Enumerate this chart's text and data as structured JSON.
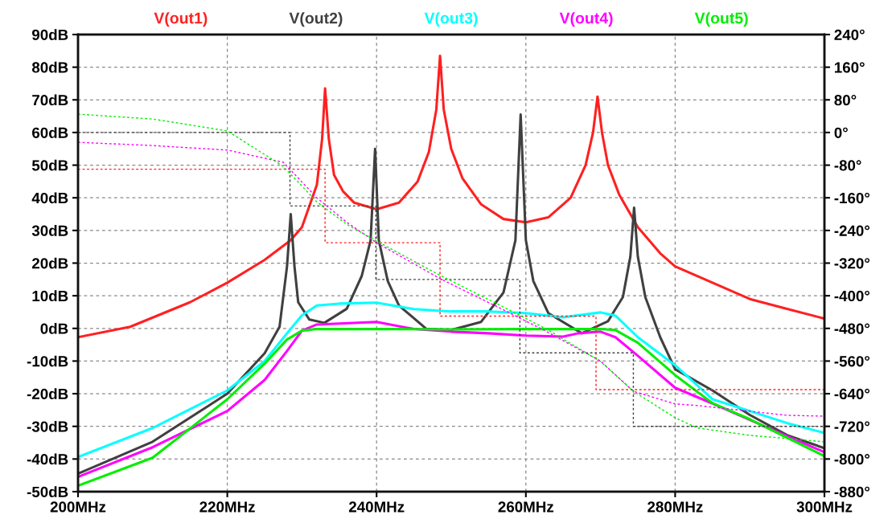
{
  "chart_data": {
    "type": "line",
    "xlim": [
      200,
      300
    ],
    "xticks": [
      {
        "value": 200,
        "label": "200MHz"
      },
      {
        "value": 220,
        "label": "220MHz"
      },
      {
        "value": 240,
        "label": "240MHz"
      },
      {
        "value": 260,
        "label": "260MHz"
      },
      {
        "value": 280,
        "label": "280MHz"
      },
      {
        "value": 300,
        "label": "300MHz"
      }
    ],
    "ylim": [
      -50,
      90
    ],
    "yticks": [
      {
        "value": 90,
        "label": "90dB"
      },
      {
        "value": 80,
        "label": "80dB"
      },
      {
        "value": 70,
        "label": "70dB"
      },
      {
        "value": 60,
        "label": "60dB"
      },
      {
        "value": 50,
        "label": "50dB"
      },
      {
        "value": 40,
        "label": "40dB"
      },
      {
        "value": 30,
        "label": "30dB"
      },
      {
        "value": 20,
        "label": "20dB"
      },
      {
        "value": 10,
        "label": "10dB"
      },
      {
        "value": 0,
        "label": "0dB"
      },
      {
        "value": -10,
        "label": "-10dB"
      },
      {
        "value": -20,
        "label": "-20dB"
      },
      {
        "value": -30,
        "label": "-30dB"
      },
      {
        "value": -40,
        "label": "-40dB"
      },
      {
        "value": -50,
        "label": "-50dB"
      }
    ],
    "y2lim": [
      -880,
      240
    ],
    "y2ticks": [
      {
        "value": 240,
        "label": "240°"
      },
      {
        "value": 160,
        "label": "160°"
      },
      {
        "value": 80,
        "label": "80°"
      },
      {
        "value": 0,
        "label": "0°"
      },
      {
        "value": -80,
        "label": "-80°"
      },
      {
        "value": -160,
        "label": "-160°"
      },
      {
        "value": -240,
        "label": "-240°"
      },
      {
        "value": -320,
        "label": "-320°"
      },
      {
        "value": -400,
        "label": "-400°"
      },
      {
        "value": -480,
        "label": "-480°"
      },
      {
        "value": -560,
        "label": "-560°"
      },
      {
        "value": -640,
        "label": "-640°"
      },
      {
        "value": -720,
        "label": "-720°"
      },
      {
        "value": -800,
        "label": "-800°"
      },
      {
        "value": -880,
        "label": "-880°"
      }
    ],
    "grid": true,
    "legend": "top",
    "series": [
      {
        "name": "V(out1)",
        "color": "#ff2020",
        "line_style": "solid",
        "x": [
          200,
          207,
          215,
          220,
          225,
          228.5,
          230,
          232,
          232.7,
          233.1,
          233.6,
          234.3,
          235.5,
          237,
          240,
          243,
          245.5,
          247,
          248,
          248.5,
          249,
          250,
          251.5,
          254,
          257,
          260,
          263,
          266,
          268,
          269,
          269.6,
          270.2,
          271,
          272.5,
          275,
          278,
          280,
          285,
          290,
          295,
          300
        ],
        "values": [
          -2.7,
          0.5,
          8,
          14,
          21,
          27,
          31,
          44,
          58,
          73.5,
          58,
          47,
          42,
          38.5,
          36.5,
          38.5,
          45,
          54,
          67,
          83.5,
          67,
          55,
          46,
          38,
          33.5,
          32.5,
          34,
          40,
          50,
          60,
          71,
          60,
          50,
          41,
          31,
          23,
          19,
          14,
          9,
          6,
          3
        ]
      },
      {
        "name": "V(out2)",
        "color": "#404040",
        "line_style": "solid",
        "x": [
          200,
          210,
          220,
          225,
          227,
          228,
          228.5,
          229,
          229.5,
          231,
          233,
          236,
          238,
          239.2,
          239.8,
          240.3,
          241.5,
          243,
          246.7,
          250,
          254,
          257,
          258.6,
          259.3,
          260,
          261,
          263,
          267.5,
          271,
          273,
          274,
          274.5,
          275,
          276,
          278,
          280,
          285,
          290,
          295,
          300
        ],
        "values": [
          -44.5,
          -34.7,
          -20,
          -7.6,
          0.5,
          19,
          35,
          19,
          8,
          2.7,
          1.7,
          6,
          16,
          27,
          55,
          27,
          14.5,
          7,
          -0.2,
          -0.5,
          2,
          11,
          27,
          65.5,
          27,
          14.5,
          4.7,
          -1.5,
          2.2,
          9.6,
          22,
          37,
          22,
          9.6,
          -2.7,
          -12.5,
          -19,
          -26.5,
          -32.7,
          -36.7
        ]
      },
      {
        "name": "V(out3)",
        "color": "#00ffff",
        "line_style": "solid",
        "x": [
          200,
          210,
          220,
          225,
          228,
          230,
          232,
          235,
          240,
          245,
          250,
          255,
          260,
          265,
          270,
          272,
          275,
          280,
          285,
          290,
          295,
          300
        ],
        "values": [
          -39.4,
          -30.5,
          -19,
          -10,
          -1.5,
          4,
          7,
          7.6,
          7.9,
          5.9,
          5.2,
          5.2,
          4.7,
          3.4,
          4.9,
          3.9,
          -2.7,
          -11.3,
          -21.7,
          -25.3,
          -29,
          -32
        ]
      },
      {
        "name": "V(out4)",
        "color": "#ff00ff",
        "line_style": "solid",
        "x": [
          200,
          210,
          220,
          225,
          228,
          230,
          232,
          235,
          240,
          245,
          250,
          255,
          260,
          265,
          267,
          270,
          272,
          275,
          280,
          285,
          290,
          295,
          300
        ],
        "values": [
          -45.5,
          -36.4,
          -25.3,
          -15.8,
          -6.9,
          -0.7,
          1.2,
          1.5,
          2,
          -0.2,
          -1,
          -1.5,
          -2.2,
          -2.5,
          -1.5,
          -1,
          -2.7,
          -8.4,
          -18.2,
          -23,
          -28,
          -33,
          -37.9
        ]
      },
      {
        "name": "V(out5)",
        "color": "#00ee00",
        "line_style": "solid",
        "x": [
          200,
          210,
          220,
          225,
          228,
          230,
          232,
          240,
          250,
          260,
          270,
          272,
          275,
          280,
          285,
          290,
          295,
          300
        ],
        "values": [
          -48.2,
          -39.6,
          -21.7,
          -10.8,
          -3.4,
          -0.7,
          -0.2,
          -0.2,
          -0.3,
          -0.2,
          -0.2,
          -0.5,
          -4.4,
          -14.3,
          -22.9,
          -27.8,
          -33.5,
          -39.1
        ]
      },
      {
        "color": "#ff2020",
        "axis": "y2",
        "line_style": "dotted",
        "x": [
          200,
          233.1,
          233.1,
          248.5,
          248.5,
          269.4,
          269.4,
          300
        ],
        "values": [
          -90,
          -90,
          -270,
          -270,
          -450,
          -450,
          -630,
          -630
        ]
      },
      {
        "color": "#404040",
        "axis": "y2",
        "line_style": "dotted",
        "x": [
          200,
          228.4,
          228.4,
          239.9,
          239.9,
          259.2,
          259.2,
          274.4,
          274.4,
          300
        ],
        "values": [
          0,
          0,
          -180,
          -180,
          -360,
          -360,
          -540,
          -540,
          -720,
          -720
        ]
      },
      {
        "color": "#ff00ff",
        "axis": "y2",
        "line_style": "dotted",
        "x": [
          200,
          210,
          220,
          227.5,
          232,
          236,
          240,
          248.5,
          256.5,
          262.8,
          270,
          274.4,
          280,
          283,
          290,
          295,
          300
        ],
        "values": [
          -24,
          -32,
          -43,
          -73,
          -160,
          -220,
          -270,
          -358,
          -430,
          -488,
          -560,
          -634,
          -665,
          -669,
          -683,
          -693,
          -695
        ]
      },
      {
        "color": "#00ee00",
        "axis": "y2",
        "line_style": "dotted",
        "x": [
          200,
          210,
          220,
          227.5,
          232,
          236,
          240,
          248.5,
          256.5,
          262.8,
          270,
          274.4,
          280,
          283,
          290,
          293.8,
          300
        ],
        "values": [
          45,
          33,
          4,
          -83,
          -170,
          -225,
          -266,
          -350,
          -423,
          -482,
          -561,
          -634,
          -699,
          -724,
          -742,
          -748,
          -758
        ]
      }
    ]
  }
}
